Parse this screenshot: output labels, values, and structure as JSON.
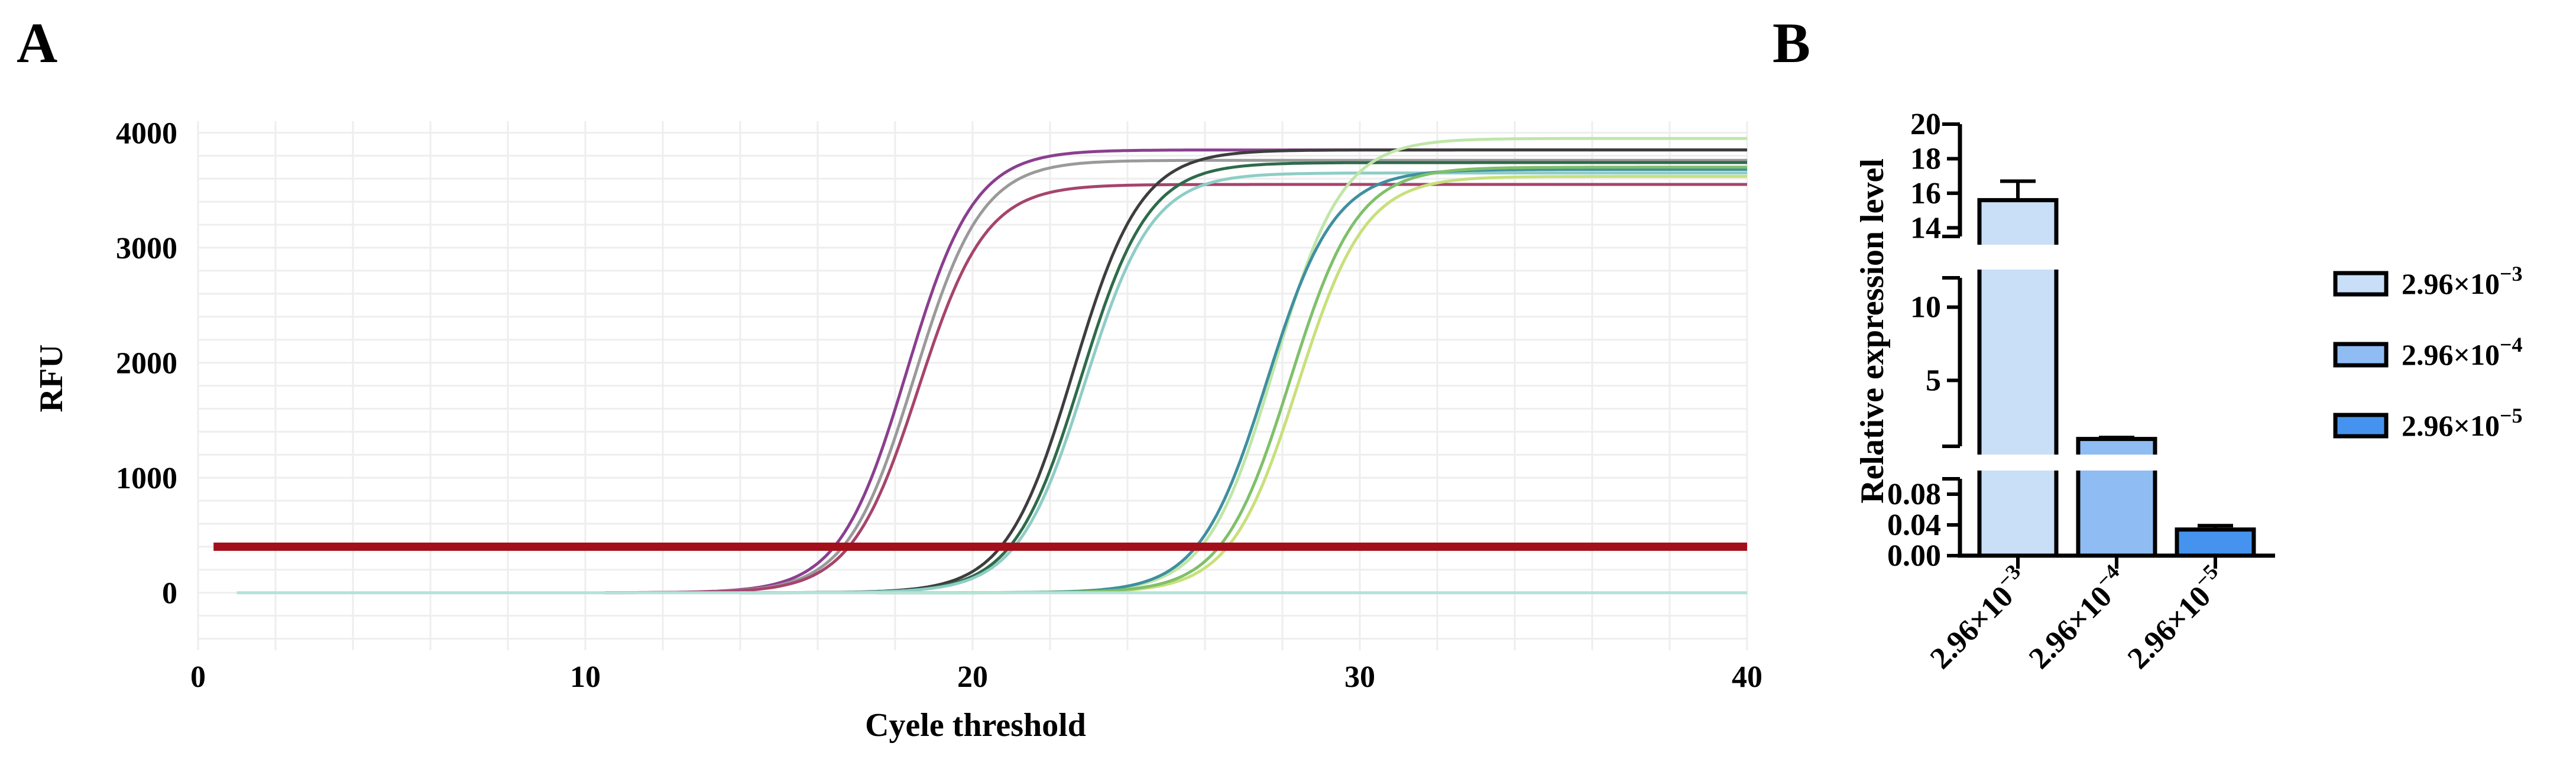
{
  "panels": {
    "a_label": "A",
    "b_label": "B"
  },
  "chart_data": [
    {
      "type": "line",
      "panel": "A",
      "xlabel": "Cyele threshold",
      "ylabel": "RFU",
      "xlim": [
        0,
        40
      ],
      "ylim": [
        -500,
        4100
      ],
      "x_ticks": [
        0,
        10,
        20,
        30,
        40
      ],
      "y_ticks": [
        0,
        1000,
        2000,
        3000,
        4000
      ],
      "grid": true,
      "threshold": {
        "y": 400,
        "color": "#a30f1a"
      },
      "series": [
        {
          "color": "#8a3f8f",
          "baseline": 0,
          "plateau": 3850,
          "midpoint": 18.3,
          "slope": 1.15,
          "start": 10.5
        },
        {
          "color": "#9a9a9a",
          "baseline": 0,
          "plateau": 3760,
          "midpoint": 18.5,
          "slope": 1.15,
          "start": 10.5
        },
        {
          "color": "#a6446c",
          "baseline": 0,
          "plateau": 3550,
          "midpoint": 18.6,
          "slope": 1.15,
          "start": 10.5
        },
        {
          "color": "#3d3d3d",
          "baseline": 0,
          "plateau": 3850,
          "midpoint": 22.6,
          "slope": 1.15,
          "start": 14
        },
        {
          "color": "#2e6b4a",
          "baseline": 0,
          "plateau": 3740,
          "midpoint": 22.8,
          "slope": 1.15,
          "start": 14
        },
        {
          "color": "#8ecdc6",
          "baseline": 0,
          "plateau": 3650,
          "midpoint": 22.9,
          "slope": 1.15,
          "start": 14
        },
        {
          "color": "#bfe6a8",
          "baseline": 0,
          "plateau": 3950,
          "midpoint": 27.8,
          "slope": 1.15,
          "start": 17.5
        },
        {
          "color": "#3f8fa0",
          "baseline": 0,
          "plateau": 3680,
          "midpoint": 27.6,
          "slope": 1.15,
          "start": 17.5
        },
        {
          "color": "#c8e07a",
          "baseline": 0,
          "plateau": 3620,
          "midpoint": 28.4,
          "slope": 1.15,
          "start": 17.5
        },
        {
          "color": "#7fc06a",
          "baseline": 0,
          "plateau": 3700,
          "midpoint": 28.2,
          "slope": 1.15,
          "start": 17.5
        },
        {
          "color": "#b3e3d8",
          "baseline": 0,
          "plateau": 0,
          "midpoint": 0,
          "slope": 1,
          "start": 1
        }
      ]
    },
    {
      "type": "bar",
      "panel": "B",
      "ylabel": "Relative expression level",
      "categories": [
        "2.96×10^-3",
        "2.96×10^-4",
        "2.96×10^-5"
      ],
      "category_labels": [
        {
          "base": "2.96×10",
          "exp": "−3"
        },
        {
          "base": "2.96×10",
          "exp": "−4"
        },
        {
          "base": "2.96×10",
          "exp": "−5"
        }
      ],
      "values": [
        15.6,
        1.0,
        0.034
      ],
      "errors": [
        1.1,
        0.1,
        0.005
      ],
      "colors": [
        "#c9def7",
        "#8fbcf2",
        "#4593ee"
      ],
      "broken_axis": {
        "segments": [
          {
            "range": [
              13.5,
              20
            ],
            "ticks": [
              14,
              16,
              18,
              20
            ]
          },
          {
            "range": [
              0.5,
              12
            ],
            "ticks": [
              5,
              10
            ]
          },
          {
            "range": [
              0,
              0.1
            ],
            "ticks": [
              0.0,
              0.04,
              0.08
            ]
          }
        ],
        "tick_labels": [
          [
            "14",
            "16",
            "18",
            "20"
          ],
          [
            "5",
            "10"
          ],
          [
            "0.00",
            "0.04",
            "0.08"
          ]
        ]
      },
      "legend": [
        {
          "base": "2.96×10",
          "exp": "−3",
          "color": "#c9def7"
        },
        {
          "base": "2.96×10",
          "exp": "−4",
          "color": "#8fbcf2"
        },
        {
          "base": "2.96×10",
          "exp": "−5",
          "color": "#4593ee"
        }
      ],
      "legend_position": "right"
    }
  ]
}
